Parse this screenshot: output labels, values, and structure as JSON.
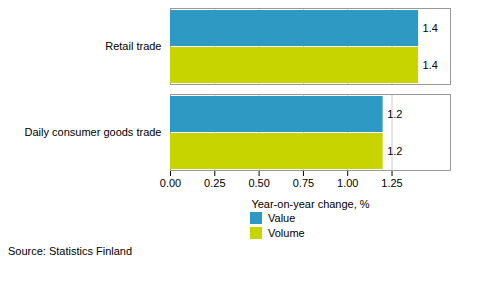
{
  "chart_data": {
    "type": "bar",
    "orientation": "horizontal",
    "categories": [
      "Daily consumer goods trade",
      "Retail trade"
    ],
    "series": [
      {
        "name": "Value",
        "color": "#2E9AC4",
        "values": [
          1.2,
          1.4
        ]
      },
      {
        "name": "Volume",
        "color": "#C8D400",
        "values": [
          1.2,
          1.4
        ]
      }
    ],
    "xlabel": "Year-on-year change, %",
    "xlim": [
      0,
      1.58
    ],
    "xticks": [
      {
        "value": 0,
        "label": "0.00"
      },
      {
        "value": 0.25,
        "label": "0.25"
      },
      {
        "value": 0.5,
        "label": "0.50"
      },
      {
        "value": 0.75,
        "label": "0.75"
      },
      {
        "value": 1,
        "label": "1.00"
      },
      {
        "value": 1.25,
        "label": "1.25"
      }
    ],
    "grid": true,
    "data_labels": true,
    "legend": "bottom",
    "caption": "Source: Statistics Finland"
  }
}
